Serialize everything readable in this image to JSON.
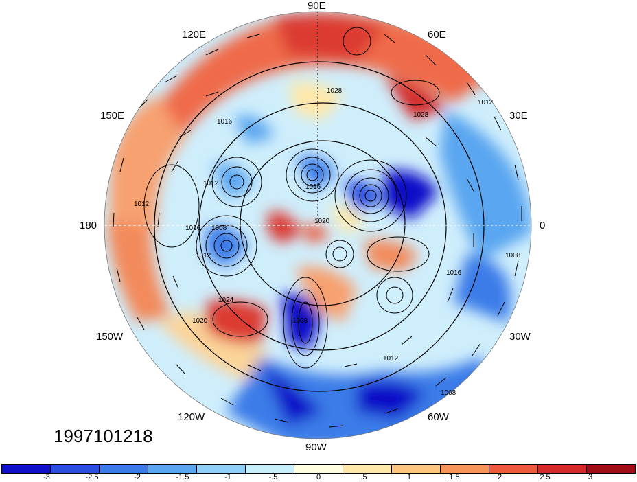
{
  "map": {
    "projection": "polar-stereographic (north pole)",
    "timestamp": "1997101218",
    "longitude_labels": [
      "90E",
      "60E",
      "30E",
      "0",
      "30W",
      "60W",
      "90W",
      "120W",
      "150W",
      "180",
      "150E",
      "120E"
    ],
    "isobar_labels": [
      "1028",
      "1012",
      "1016",
      "1012",
      "1012",
      "1016",
      "1008",
      "1012",
      "1016",
      "1020",
      "1016",
      "1024",
      "1020",
      "1028",
      "1008",
      "1008",
      "1012",
      "1008"
    ]
  },
  "colorbar": {
    "tick_labels": [
      "-3",
      "-2.5",
      "-2",
      "-1.5",
      "-1",
      "-.5",
      "0",
      ".5",
      "1",
      "1.5",
      "2",
      "2.5",
      "3"
    ],
    "colors": [
      "#1010c8",
      "#2a4fe0",
      "#3a7be8",
      "#5aa6f0",
      "#8fd0f8",
      "#c8f0fc",
      "#ffffe0",
      "#ffe8a8",
      "#fdc57e",
      "#f79458",
      "#ec5c3c",
      "#d42a2a",
      "#9e0e14"
    ]
  }
}
